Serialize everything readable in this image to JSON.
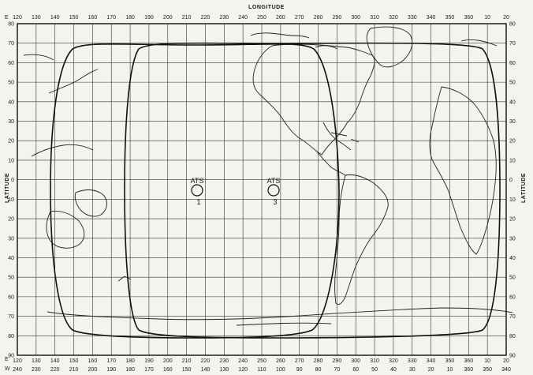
{
  "title": "LONGITUDE",
  "axis_left_label": "LATITUDE",
  "axis_right_label": "LATITUDE",
  "top_prefix": "E",
  "bottom_prefix_e": "E",
  "bottom_prefix_w": "W",
  "longitude_east_ticks": [
    "120",
    "130",
    "140",
    "150",
    "160",
    "170",
    "180",
    "190",
    "200",
    "210",
    "220",
    "230",
    "240",
    "250",
    "260",
    "270",
    "280",
    "290",
    "300",
    "310",
    "320",
    "330",
    "340",
    "350",
    "360",
    "10",
    "20"
  ],
  "longitude_west_ticks": [
    "240",
    "230",
    "220",
    "210",
    "200",
    "190",
    "180",
    "170",
    "160",
    "150",
    "140",
    "130",
    "120",
    "110",
    "100",
    "90",
    "80",
    "70",
    "60",
    "50",
    "40",
    "30",
    "20",
    "10",
    "360",
    "350",
    "340"
  ],
  "latitude_ticks": [
    "80",
    "70",
    "60",
    "50",
    "40",
    "30",
    "20",
    "10",
    "0",
    "10",
    "20",
    "30",
    "40",
    "50",
    "60",
    "70",
    "80",
    "90"
  ],
  "satellites": [
    {
      "label": "ATS",
      "number": "1",
      "longitude": 210
    },
    {
      "label": "ATS",
      "number": "3",
      "longitude": 250
    }
  ]
}
